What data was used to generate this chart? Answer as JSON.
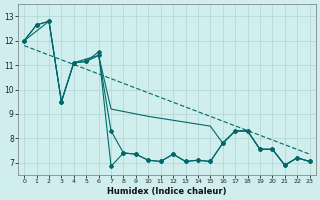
{
  "xlabel": "Humidex (Indice chaleur)",
  "background_color": "#d0eeee",
  "grid_color": "#b8d8d8",
  "line_color": "#006868",
  "series1_x": [
    0,
    1,
    2,
    3,
    4,
    5,
    6,
    7,
    8,
    9,
    10,
    11,
    12,
    13,
    14,
    15,
    16,
    17,
    18,
    19,
    20,
    21,
    22,
    23
  ],
  "series1_y": [
    12.0,
    12.65,
    12.8,
    9.5,
    11.1,
    11.15,
    11.4,
    8.3,
    7.4,
    7.35,
    7.1,
    7.05,
    7.35,
    7.05,
    7.1,
    7.05,
    7.8,
    8.3,
    8.3,
    7.55,
    7.55,
    6.9,
    7.2,
    7.05
  ],
  "series2_x": [
    0,
    1,
    2,
    3,
    4,
    5,
    6,
    7,
    8,
    9,
    10,
    11,
    12,
    13,
    14,
    15,
    16,
    17,
    18,
    19,
    20,
    21,
    22,
    23
  ],
  "series2_y": [
    12.0,
    12.65,
    12.8,
    9.5,
    11.1,
    11.15,
    11.55,
    6.85,
    7.4,
    7.35,
    7.1,
    7.05,
    7.35,
    7.05,
    7.1,
    7.05,
    7.8,
    8.3,
    8.3,
    7.55,
    7.55,
    6.9,
    7.2,
    7.05
  ],
  "series3_x": [
    0,
    2,
    3,
    4,
    6,
    7,
    10,
    15,
    16,
    17,
    18,
    19,
    20,
    21,
    22,
    23
  ],
  "series3_y": [
    12.0,
    12.8,
    9.5,
    11.1,
    11.4,
    9.2,
    8.9,
    8.5,
    7.8,
    8.3,
    8.3,
    7.55,
    7.55,
    6.9,
    7.2,
    7.05
  ],
  "trend_x": [
    0,
    23
  ],
  "trend_y": [
    11.8,
    7.35
  ],
  "ylim": [
    6.5,
    13.5
  ],
  "xlim": [
    -0.5,
    23.5
  ],
  "yticks": [
    7,
    8,
    9,
    10,
    11,
    12,
    13
  ],
  "xticks": [
    0,
    1,
    2,
    3,
    4,
    5,
    6,
    7,
    8,
    9,
    10,
    11,
    12,
    13,
    14,
    15,
    16,
    17,
    18,
    19,
    20,
    21,
    22,
    23
  ]
}
